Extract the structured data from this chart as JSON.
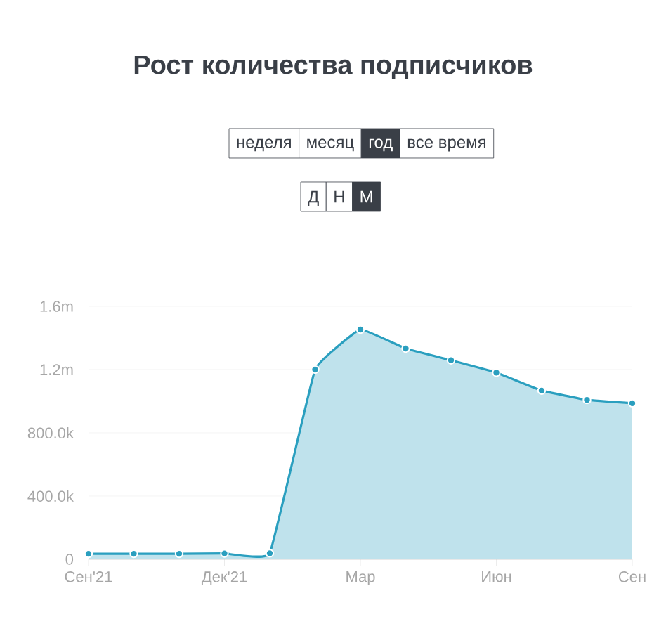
{
  "chart_data": {
    "type": "area",
    "title": "Рост количества подписчиков",
    "annotations": [
      "неделя",
      "месяц",
      "год",
      "все время",
      "Д",
      "Н",
      "М"
    ],
    "categories": [
      "Сен'21",
      null,
      null,
      "Дек'21",
      null,
      null,
      "Мар",
      null,
      null,
      "Июн",
      null,
      null,
      "Сен"
    ],
    "values": [
      35000,
      35000,
      35000,
      37000,
      38000,
      1200000,
      1453000,
      1333000,
      1259000,
      1181000,
      1067000,
      1008000,
      987000
    ],
    "color": "#2a9fbf",
    "ylim": [
      0,
      1600000
    ],
    "yticks": [
      {
        "value": 0,
        "label": "0"
      },
      {
        "value": 400000,
        "label": "400.0k"
      },
      {
        "value": 800000,
        "label": "800.0k"
      },
      {
        "value": 1200000,
        "label": "1.2m"
      },
      {
        "value": 1600000,
        "label": "1.6m"
      }
    ],
    "grid": "y",
    "marker": "circle",
    "line_style": "solid"
  }
}
